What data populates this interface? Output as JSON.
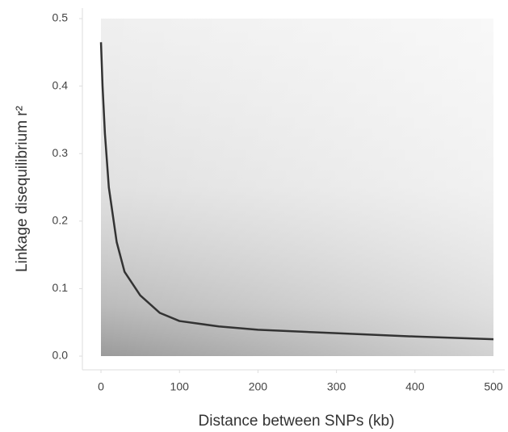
{
  "chart_data": {
    "type": "line",
    "x_label": "Distance between SNPs (kb)",
    "y_label": "Linkage disequilibrium r²",
    "xlim": [
      -23.7,
      514.4
    ],
    "ylim": [
      -0.0203,
      0.5156
    ],
    "xticks": [
      0,
      100,
      200,
      300,
      400,
      500
    ],
    "yticks": [
      {
        "value": 0,
        "label": "0.0"
      },
      0.1,
      0.2,
      0.3,
      0.4,
      0.5
    ],
    "series": [
      {
        "color": "#333333",
        "x": [
          0,
          2,
          5,
          10,
          20,
          30,
          50,
          75,
          100,
          150,
          200,
          300,
          400,
          500
        ],
        "values": [
          0.465,
          0.4,
          0.33,
          0.25,
          0.169,
          0.125,
          0.09,
          0.064,
          0.052,
          0.044,
          0.039,
          0.034,
          0.029,
          0.025
        ]
      }
    ]
  }
}
